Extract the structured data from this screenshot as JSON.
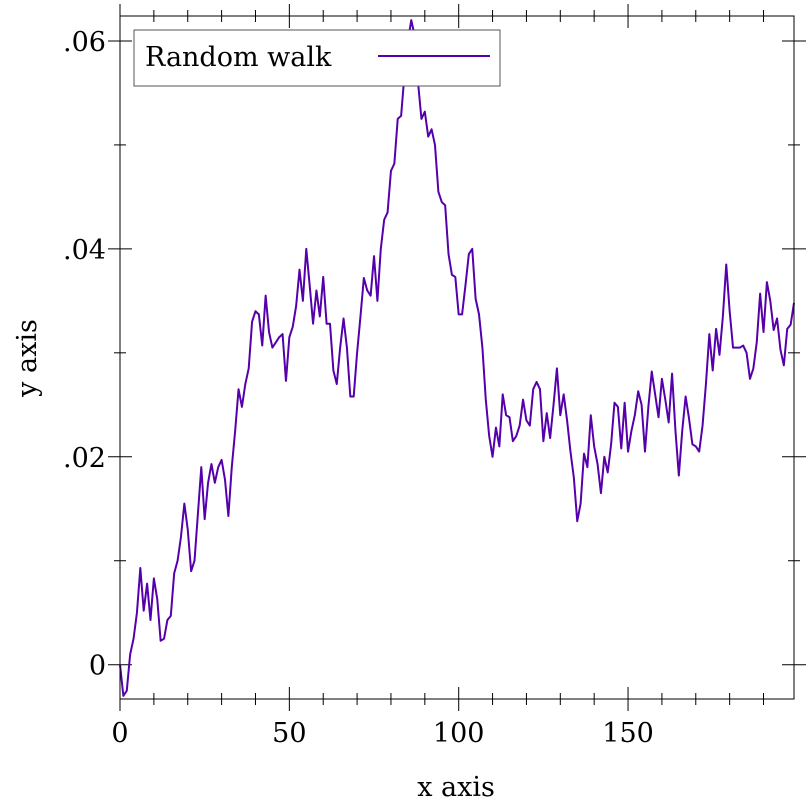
{
  "chart_data": {
    "type": "line",
    "title": "",
    "xlabel": "x axis",
    "ylabel": "y axis",
    "xlim": [
      0,
      199
    ],
    "ylim": [
      -0.0033,
      0.0624
    ],
    "x_ticks": [
      0,
      50,
      100,
      150
    ],
    "x_tick_labels": [
      "0",
      "50",
      "100",
      "150"
    ],
    "y_ticks": [
      0,
      0.02,
      0.04,
      0.06
    ],
    "y_tick_labels": [
      "0",
      ".02",
      ".04",
      ".06"
    ],
    "grid": false,
    "legend": "top-left",
    "series": [
      {
        "name": "Random walk",
        "color": "#5500aa",
        "x_start": 0,
        "x_step": 1,
        "values": [
          0.0,
          -0.003,
          -0.0025,
          0.001,
          0.0025,
          0.005,
          0.0093,
          0.0052,
          0.0078,
          0.0043,
          0.0083,
          0.0063,
          0.0023,
          0.0025,
          0.0043,
          0.0047,
          0.0088,
          0.01,
          0.0123,
          0.0155,
          0.013,
          0.009,
          0.01,
          0.0145,
          0.019,
          0.014,
          0.0175,
          0.0193,
          0.0175,
          0.019,
          0.0197,
          0.0178,
          0.0143,
          0.019,
          0.0225,
          0.0265,
          0.0248,
          0.027,
          0.0285,
          0.033,
          0.034,
          0.0337,
          0.0307,
          0.0355,
          0.032,
          0.0305,
          0.031,
          0.0315,
          0.0318,
          0.0273,
          0.0315,
          0.0325,
          0.0345,
          0.038,
          0.035,
          0.04,
          0.0365,
          0.0328,
          0.036,
          0.0335,
          0.0373,
          0.0328,
          0.0328,
          0.0283,
          0.027,
          0.0305,
          0.0333,
          0.0305,
          0.0258,
          0.0258,
          0.03,
          0.0335,
          0.0372,
          0.036,
          0.0355,
          0.0393,
          0.035,
          0.04,
          0.0428,
          0.0435,
          0.0475,
          0.0482,
          0.0525,
          0.0528,
          0.0568,
          0.06,
          0.062,
          0.0605,
          0.056,
          0.0525,
          0.0532,
          0.0508,
          0.0515,
          0.05,
          0.0455,
          0.0445,
          0.0442,
          0.0395,
          0.0375,
          0.0373,
          0.0337,
          0.0337,
          0.0365,
          0.0395,
          0.04,
          0.0352,
          0.0337,
          0.0305,
          0.0255,
          0.022,
          0.02,
          0.0228,
          0.021,
          0.026,
          0.024,
          0.0238,
          0.0215,
          0.022,
          0.023,
          0.0255,
          0.0235,
          0.023,
          0.0265,
          0.0272,
          0.0265,
          0.0215,
          0.0242,
          0.0218,
          0.025,
          0.0285,
          0.024,
          0.026,
          0.0235,
          0.0205,
          0.018,
          0.0138,
          0.0155,
          0.0203,
          0.019,
          0.024,
          0.021,
          0.0193,
          0.0165,
          0.02,
          0.0185,
          0.0212,
          0.0252,
          0.0248,
          0.0208,
          0.0252,
          0.0205,
          0.0225,
          0.024,
          0.0263,
          0.025,
          0.0205,
          0.0248,
          0.0282,
          0.026,
          0.0238,
          0.0275,
          0.0255,
          0.0233,
          0.028,
          0.0225,
          0.0182,
          0.0225,
          0.0258,
          0.0237,
          0.0212,
          0.021,
          0.0205,
          0.023,
          0.027,
          0.0318,
          0.0283,
          0.0323,
          0.0298,
          0.0335,
          0.0385,
          0.034,
          0.0305,
          0.0305,
          0.0305,
          0.0307,
          0.03,
          0.0275,
          0.0285,
          0.031,
          0.0357,
          0.032,
          0.0368,
          0.035,
          0.0322,
          0.0333,
          0.0303,
          0.0288,
          0.0323,
          0.0327,
          0.0348
        ]
      }
    ]
  }
}
